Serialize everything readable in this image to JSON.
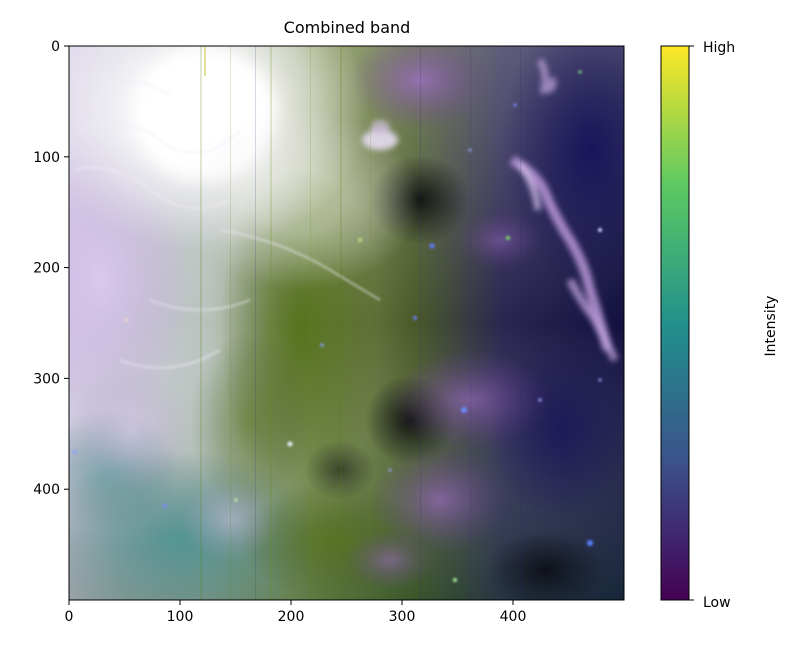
{
  "figure": {
    "title": "Combined band",
    "image_kind": "false-color astronomical nebula image (multi-band composite)",
    "x_axis": {
      "range": [
        0,
        500
      ],
      "ticks": [
        0,
        100,
        200,
        300,
        400
      ]
    },
    "y_axis": {
      "range": [
        0,
        500
      ],
      "inverted": true,
      "ticks": [
        0,
        100,
        200,
        300,
        400
      ]
    },
    "colorbar": {
      "label": "Intensity",
      "colormap": "viridis",
      "tick_low": "Low",
      "tick_high": "High",
      "colors": [
        "#440154",
        "#3b528b",
        "#21918c",
        "#5ec962",
        "#fde725"
      ]
    },
    "palette": {
      "white_glow": "#fbfbfb",
      "lavender": "#c8b4e4",
      "purple": "#8a5cb8",
      "deep_navy": "#0d0a3a",
      "olive_green": "#4e6a10",
      "teal": "#3f8a8a"
    }
  }
}
